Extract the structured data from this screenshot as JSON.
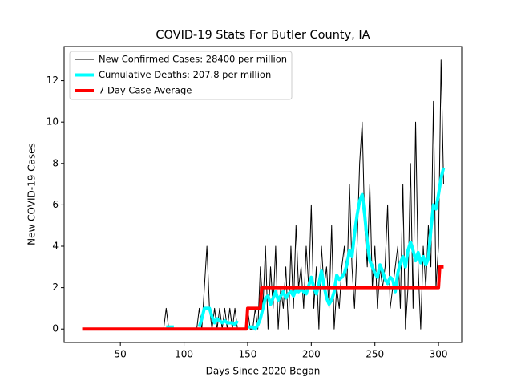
{
  "chart_data": {
    "type": "line",
    "title": "COVID-19 Stats For Butler County, IA",
    "x_label": "Days Since 2020 Began",
    "y_label": "New COVID-19 Cases",
    "xlim": [
      5.8,
      318.2
    ],
    "ylim": [
      -0.65,
      13.65
    ],
    "xticks": [
      50,
      100,
      150,
      200,
      250,
      300
    ],
    "yticks": [
      0,
      2,
      4,
      6,
      8,
      10,
      12
    ],
    "legend": "upper left",
    "series": [
      {
        "name": "New Confirmed Cases: 28400 per million",
        "color": "#000000",
        "linewidth": 1,
        "x": [
          84,
          86,
          88,
          90,
          92,
          94,
          96,
          98,
          100,
          102,
          104,
          106,
          108,
          110,
          112,
          114,
          116,
          118,
          120,
          122,
          124,
          126,
          128,
          130,
          132,
          134,
          136,
          138,
          140,
          142,
          144,
          146,
          148,
          150,
          152,
          154,
          156,
          158,
          160,
          162,
          164,
          166,
          168,
          170,
          172,
          174,
          176,
          178,
          180,
          182,
          184,
          186,
          188,
          190,
          192,
          194,
          196,
          198,
          200,
          202,
          204,
          206,
          208,
          210,
          212,
          214,
          216,
          218,
          220,
          222,
          224,
          226,
          228,
          230,
          232,
          234,
          236,
          238,
          240,
          242,
          244,
          246,
          248,
          250,
          252,
          254,
          256,
          258,
          260,
          262,
          264,
          266,
          268,
          270,
          272,
          274,
          276,
          278,
          280,
          282,
          284,
          286,
          288,
          290,
          292,
          294,
          296,
          298,
          300,
          302,
          304
        ],
        "values": [
          0,
          1,
          0,
          0,
          0,
          0,
          0,
          0,
          0,
          0,
          0,
          0,
          0,
          0,
          1,
          0,
          2,
          4,
          1,
          0,
          1,
          0,
          1,
          0,
          1,
          0,
          1,
          0,
          1,
          0,
          0,
          0,
          0,
          1,
          0,
          0,
          1,
          0,
          3,
          1,
          4,
          0,
          3,
          1,
          4,
          0,
          2,
          1,
          3,
          0,
          4,
          1,
          5,
          2,
          3,
          1,
          4,
          2,
          6,
          1,
          3,
          0,
          4,
          2,
          3,
          1,
          5,
          0,
          2,
          1,
          3,
          4,
          2,
          7,
          3,
          1,
          4,
          8,
          10,
          5,
          3,
          7,
          2,
          4,
          1,
          3,
          2,
          3,
          6,
          1,
          2,
          3,
          4,
          1,
          7,
          0,
          2,
          8,
          1,
          10,
          3,
          0,
          4,
          2,
          5,
          3,
          11,
          2,
          4,
          13,
          7
        ]
      },
      {
        "name": "Cumulative Deaths: 207.8 per million",
        "color": "#00ffff",
        "linewidth": 4,
        "x": [
          84,
          86,
          88,
          90,
          92,
          94,
          96,
          98,
          100,
          102,
          104,
          106,
          108,
          110,
          112,
          114,
          116,
          118,
          120,
          122,
          124,
          126,
          128,
          130,
          132,
          134,
          136,
          138,
          140,
          142,
          144,
          146,
          148,
          150,
          152,
          154,
          156,
          158,
          160,
          162,
          164,
          166,
          168,
          170,
          172,
          174,
          176,
          178,
          180,
          182,
          184,
          186,
          188,
          190,
          192,
          194,
          196,
          198,
          200,
          202,
          204,
          206,
          208,
          210,
          212,
          214,
          216,
          218,
          220,
          222,
          224,
          226,
          228,
          230,
          232,
          234,
          236,
          238,
          240,
          242,
          244,
          246,
          248,
          250,
          252,
          254,
          256,
          258,
          260,
          262,
          264,
          266,
          268,
          270,
          272,
          274,
          276,
          278,
          280,
          282,
          284,
          286,
          288,
          290,
          292,
          294,
          296,
          298,
          300,
          302,
          304
        ],
        "values": [
          null,
          0.1,
          0.1,
          0.1,
          0.1,
          null,
          null,
          null,
          null,
          null,
          null,
          null,
          null,
          null,
          0.1,
          0.5,
          1,
          1,
          1,
          0.6,
          0.3,
          0.5,
          0.4,
          0.3,
          0.4,
          0.3,
          0.3,
          0.3,
          0.2,
          0.4,
          null,
          null,
          null,
          0.1,
          0.1,
          0.1,
          0,
          0.2,
          0.5,
          1,
          1.5,
          1.6,
          1.2,
          1.5,
          1.8,
          1.4,
          1.6,
          1.8,
          1.5,
          1.7,
          1.8,
          1.6,
          1.9,
          1.8,
          2,
          1.8,
          1.7,
          2.1,
          2.5,
          2,
          1.7,
          2.2,
          2.8,
          2.1,
          1.5,
          1.2,
          1.4,
          1.8,
          2.6,
          2.4,
          2.5,
          2.7,
          3.1,
          3.8,
          3.5,
          4.6,
          5.5,
          6.2,
          6.5,
          5.5,
          4.2,
          3.3,
          3,
          2.7,
          2.5,
          3.1,
          2.8,
          2.4,
          2.2,
          2.5,
          2.4,
          1.8,
          2.7,
          3.2,
          3.5,
          3,
          3.8,
          4.2,
          3.8,
          3.3,
          3.7,
          3.2,
          3.5,
          3.1,
          3.4,
          4.8,
          6,
          5.8,
          6.5,
          7.3,
          7.8
        ]
      },
      {
        "name": "7 Day Case Average",
        "color": "#ff0000",
        "linewidth": 4,
        "x": [
          20,
          149,
          150,
          160,
          161,
          300,
          301,
          304
        ],
        "values": [
          0,
          0,
          1,
          1,
          2,
          2,
          3,
          3
        ]
      }
    ]
  }
}
